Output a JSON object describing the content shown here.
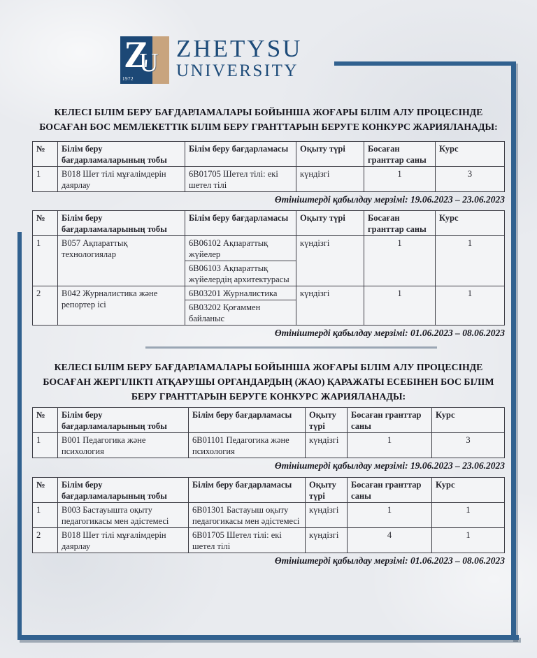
{
  "logo": {
    "letter_z": "Z",
    "letter_u": "U",
    "year": "1972",
    "word1": "ZHETYSU",
    "word2": "UNIVERSITY",
    "navy": "#1c4876",
    "tan": "#c8a47e"
  },
  "frame_color": "#31618f",
  "section1": {
    "heading": "КЕЛЕСІ БІЛІМ БЕРУ БАҒДАРЛАМАЛАРЫ БОЙЫНША ЖОҒАРЫ БІЛІМ АЛУ ПРОЦЕСІНДЕ БОСАҒАН БОС МЕМЛЕКЕТТІК БІЛІМ БЕРУ ГРАНТТАРЫН БЕРУГЕ КОНКУРС ЖАРИЯЛАНАДЫ:"
  },
  "section2": {
    "heading": "КЕЛЕСІ БІЛІМ БЕРУ БАҒДАРЛАМАЛАРЫ БОЙЫНША ЖОҒАРЫ БІЛІМ АЛУ ПРОЦЕСІНДЕ БОСАҒАН ЖЕРГІЛІКТІ АТҚАРУШЫ ОРГАНДАРДЫҢ (ЖАО) ҚАРАЖАТЫ ЕСЕБІНЕН БОС БІЛІМ БЕРУ ГРАНТТАРЫН БЕРУГЕ КОНКУРС ЖАРИЯЛАНАДЫ:"
  },
  "tables": {
    "t1": {
      "headers": [
        "№",
        "Білім беру бағдарламаларының тобы",
        "Білім беру бағдарламасы",
        "Оқыту түрі",
        "Босаған гранттар саны",
        "Курс"
      ],
      "rows": [
        {
          "num": "1",
          "group": "В018 Шет тілі мұғалімдерін даярлау",
          "program": "6В01705  Шетел тілі: екі шетел тілі",
          "study": "күндізгі",
          "grants": "1",
          "course": "3"
        }
      ],
      "note": "Өтініштерді қабылдау мерзімі: 19.06.2023 – 23.06.2023"
    },
    "t2": {
      "headers": [
        "№",
        "Білім беру бағдарламаларының тобы",
        "Білім беру бағдарламасы",
        "Оқыту түрі",
        "Босаған гранттар саны",
        "Курс"
      ],
      "rows": [
        {
          "num": "1",
          "group": "В057 Ақпараттық технологиялар",
          "program1": "6В06102 Ақпараттық жүйелер",
          "program2": "6В06103 Ақпараттық жүйелердің архитектурасы",
          "study": "күндізгі",
          "grants": "1",
          "course": "1"
        },
        {
          "num": "2",
          "group": "В042 Журналистика және репортер ісі",
          "program1": "6В03201 Журналистика",
          "program2": "6В03202 Қоғаммен байланыс",
          "study": "күндізгі",
          "grants": "1",
          "course": "1"
        }
      ],
      "note": "Өтініштерді қабылдау мерзімі: 01.06.2023 – 08.06.2023"
    },
    "t3": {
      "headers": [
        "№",
        "Білім беру бағдарламаларының тобы",
        "Білім беру бағдарламасы",
        "Оқыту түрі",
        "Босаған гранттар саны",
        "Курс"
      ],
      "rows": [
        {
          "num": "1",
          "group": "В001 Педагогика және психология",
          "program": "6В01101  Педагогика және психология",
          "study": "күндізгі",
          "grants": "1",
          "course": "3"
        }
      ],
      "note": "Өтініштерді қабылдау мерзімі: 19.06.2023 – 23.06.2023"
    },
    "t4": {
      "headers": [
        "№",
        "Білім беру бағдарламаларының тобы",
        "Білім беру бағдарламасы",
        "Оқыту түрі",
        "Босаған гранттар саны",
        "Курс"
      ],
      "rows": [
        {
          "num": "1",
          "group": "В003 Бастауышта оқыту педагогикасы мен әдістемесі",
          "program": "6В01301 Бастауыш оқыту педагогикасы мен әдістемесі",
          "study": "күндізгі",
          "grants": "1",
          "course": "1"
        },
        {
          "num": "2",
          "group": "В018 Шет тілі мұғалімдерін даярлау",
          "program": "6В01705  Шетел тілі: екі шетел тілі",
          "study": "күндізгі",
          "grants": "4",
          "course": "1"
        }
      ],
      "note": "Өтініштерді қабылдау мерзімі: 01.06.2023 – 08.06.2023"
    }
  }
}
